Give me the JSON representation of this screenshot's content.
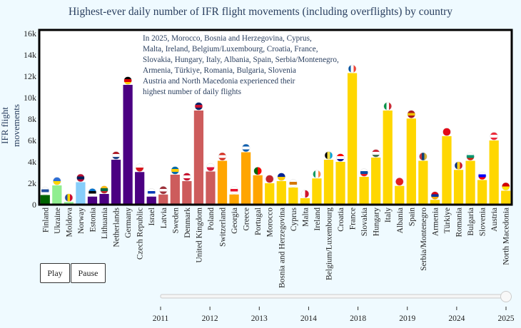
{
  "chart_data": {
    "type": "bar",
    "title": "Highest-ever daily number of IFR flight movements (including overflights) by country",
    "ylabel": "IFR flight movements",
    "ylim": [
      0,
      16000
    ],
    "yticks": [
      "0",
      "2k",
      "4k",
      "6k",
      "8k",
      "10k",
      "12k",
      "14k",
      "16k"
    ],
    "grid": false,
    "annotation": [
      "In 2025, Morocco, Bosnia and Herzegovina, Cyprus,",
      "Malta, Ireland, Belgium/Luxembourg, Croatia, France,",
      "Slovakia, Hungary, Italy, Albania, Spain, Serbia/Montenegro,",
      "Armenia, Türkiye, Romania, Bulgaria, Slovenia",
      "Austria and North Macedonia experienced their",
      "highest number of daily flights"
    ],
    "bars": [
      {
        "country": "Finland",
        "value": 900,
        "color": "#006400",
        "flag": [
          "#ffffff",
          "#1f4e9c",
          "#ffffff"
        ]
      },
      {
        "country": "Ukraine",
        "value": 1800,
        "color": "#90ee90",
        "flag": [
          "#2e6fd6",
          "#ffd500"
        ]
      },
      {
        "country": "Moldova",
        "value": 250,
        "color": "#90ee90",
        "flag": [
          "#1f4ea3",
          "#ffd200",
          "#cc092f"
        ],
        "vertical": true
      },
      {
        "country": "Norway",
        "value": 2100,
        "color": "#87cefa",
        "flag": [
          "#ba0c2f",
          "#00205b",
          "#ba0c2f"
        ]
      },
      {
        "country": "Estonia",
        "value": 750,
        "color": "#4b0082",
        "flag": [
          "#0072ce",
          "#000000",
          "#ffffff"
        ]
      },
      {
        "country": "Lithuania",
        "value": 1000,
        "color": "#4b0082",
        "flag": [
          "#fdb913",
          "#006a44",
          "#c1272d"
        ]
      },
      {
        "country": "Netherlands",
        "value": 4200,
        "color": "#4b0082",
        "flag": [
          "#ae1c28",
          "#ffffff",
          "#21468b"
        ]
      },
      {
        "country": "Germany",
        "value": 11200,
        "color": "#4b0082",
        "flag": [
          "#000000",
          "#dd0000",
          "#ffce00"
        ]
      },
      {
        "country": "Czech Republic",
        "value": 3050,
        "color": "#4b0082",
        "flag": [
          "#ffffff",
          "#d7141a"
        ]
      },
      {
        "country": "Israel",
        "value": 750,
        "color": "#4b0082",
        "flag": [
          "#ffffff",
          "#0038b8",
          "#ffffff"
        ]
      },
      {
        "country": "Latvia",
        "value": 950,
        "color": "#cd5c5c",
        "flag": [
          "#9e3039",
          "#ffffff",
          "#9e3039"
        ]
      },
      {
        "country": "Sweden",
        "value": 2800,
        "color": "#cd5c5c",
        "flag": [
          "#006aa7",
          "#fecc00",
          "#006aa7"
        ]
      },
      {
        "country": "Denmark",
        "value": 2200,
        "color": "#cd5c5c",
        "flag": [
          "#c8102e",
          "#ffffff",
          "#c8102e"
        ]
      },
      {
        "country": "United Kingdom",
        "value": 8800,
        "color": "#cd5c5c",
        "flag": [
          "#012169",
          "#c8102e",
          "#012169"
        ]
      },
      {
        "country": "Poland",
        "value": 3100,
        "color": "#cd5c5c",
        "flag": [
          "#ffffff",
          "#dc143c"
        ]
      },
      {
        "country": "Switzerland",
        "value": 4100,
        "color": "#ffa500",
        "flag": [
          "#d52b1e",
          "#ffffff",
          "#d52b1e"
        ]
      },
      {
        "country": "Georgia",
        "value": 950,
        "color": "#ffa500",
        "flag": [
          "#ffffff",
          "#e8112d",
          "#ffffff"
        ]
      },
      {
        "country": "Greece",
        "value": 4900,
        "color": "#ffa500",
        "flag": [
          "#0d5eaf",
          "#ffffff",
          "#0d5eaf"
        ]
      },
      {
        "country": "Portugal",
        "value": 2750,
        "color": "#ffa500",
        "flag": [
          "#006600",
          "#ff0000"
        ],
        "vertical": true
      },
      {
        "country": "Morocco",
        "value": 2000,
        "color": "#ffd700",
        "flag": [
          "#c1272d",
          "#c1272d"
        ]
      },
      {
        "country": "Bosnia and Herzegovina",
        "value": 2200,
        "color": "#ffd700",
        "flag": [
          "#002395",
          "#fecb00"
        ]
      },
      {
        "country": "Cyprus",
        "value": 1600,
        "color": "#ffd700",
        "flag": [
          "#ffffff",
          "#d57800",
          "#ffffff"
        ]
      },
      {
        "country": "Malta",
        "value": 600,
        "color": "#ffd700",
        "flag": [
          "#ffffff",
          "#cf142b"
        ],
        "vertical": true
      },
      {
        "country": "Ireland",
        "value": 2450,
        "color": "#ffd700",
        "flag": [
          "#169b62",
          "#ffffff",
          "#ff883e"
        ],
        "vertical": true
      },
      {
        "country": "Belgium/Luxembourg",
        "value": 4200,
        "color": "#ffd700",
        "flag": [
          "#000000",
          "#fae042",
          "#00a1de"
        ],
        "vertical": true
      },
      {
        "country": "Croatia",
        "value": 4000,
        "color": "#ffd700",
        "flag": [
          "#ff0000",
          "#ffffff",
          "#171796"
        ]
      },
      {
        "country": "France",
        "value": 12300,
        "color": "#ffd700",
        "flag": [
          "#0055a4",
          "#ffffff",
          "#ef4135"
        ],
        "vertical": true
      },
      {
        "country": "Slovakia",
        "value": 2600,
        "color": "#ffd700",
        "flag": [
          "#ffffff",
          "#0b4ea2",
          "#ee1c25"
        ]
      },
      {
        "country": "Hungary",
        "value": 4400,
        "color": "#ffd700",
        "flag": [
          "#ce2939",
          "#ffffff",
          "#477050"
        ]
      },
      {
        "country": "Italy",
        "value": 8800,
        "color": "#ffd700",
        "flag": [
          "#009246",
          "#ffffff",
          "#ce2b37"
        ],
        "vertical": true
      },
      {
        "country": "Albania",
        "value": 1750,
        "color": "#ffd700",
        "flag": [
          "#e41e20",
          "#e41e20"
        ]
      },
      {
        "country": "Spain",
        "value": 8050,
        "color": "#ffd700",
        "flag": [
          "#aa151b",
          "#f1bf00",
          "#aa151b"
        ]
      },
      {
        "country": "Serbia/Montenegro",
        "value": 4100,
        "color": "#ffd700",
        "flag": [
          "#c6363c",
          "#0c4076",
          "#d4af37"
        ],
        "vertical": true
      },
      {
        "country": "Armenia",
        "value": 450,
        "color": "#ffd700",
        "flag": [
          "#d90012",
          "#0033a0",
          "#f2a800"
        ]
      },
      {
        "country": "Türkiye",
        "value": 6400,
        "color": "#ffd700",
        "flag": [
          "#e30a17",
          "#e30a17"
        ]
      },
      {
        "country": "Romania",
        "value": 3250,
        "color": "#ffd700",
        "flag": [
          "#002b7f",
          "#fcd116",
          "#ce1126"
        ],
        "vertical": true
      },
      {
        "country": "Bulgaria",
        "value": 4100,
        "color": "#ffd700",
        "flag": [
          "#ffffff",
          "#00966e",
          "#d62612"
        ]
      },
      {
        "country": "Slovenia",
        "value": 2300,
        "color": "#ffd700",
        "flag": [
          "#ffffff",
          "#0000ff",
          "#ff0000"
        ]
      },
      {
        "country": "Austria",
        "value": 6000,
        "color": "#ffd700",
        "flag": [
          "#ed2939",
          "#ffffff",
          "#ed2939"
        ]
      },
      {
        "country": "North Macedonia",
        "value": 1300,
        "color": "#ffd700",
        "flag": [
          "#d20000",
          "#ffe600"
        ]
      }
    ]
  },
  "controls": {
    "play_label": "Play",
    "pause_label": "Pause"
  },
  "slider": {
    "years": [
      "2011",
      "2012",
      "2013",
      "2014",
      "2018",
      "2019",
      "2024",
      "2025"
    ],
    "selected": "2025"
  }
}
